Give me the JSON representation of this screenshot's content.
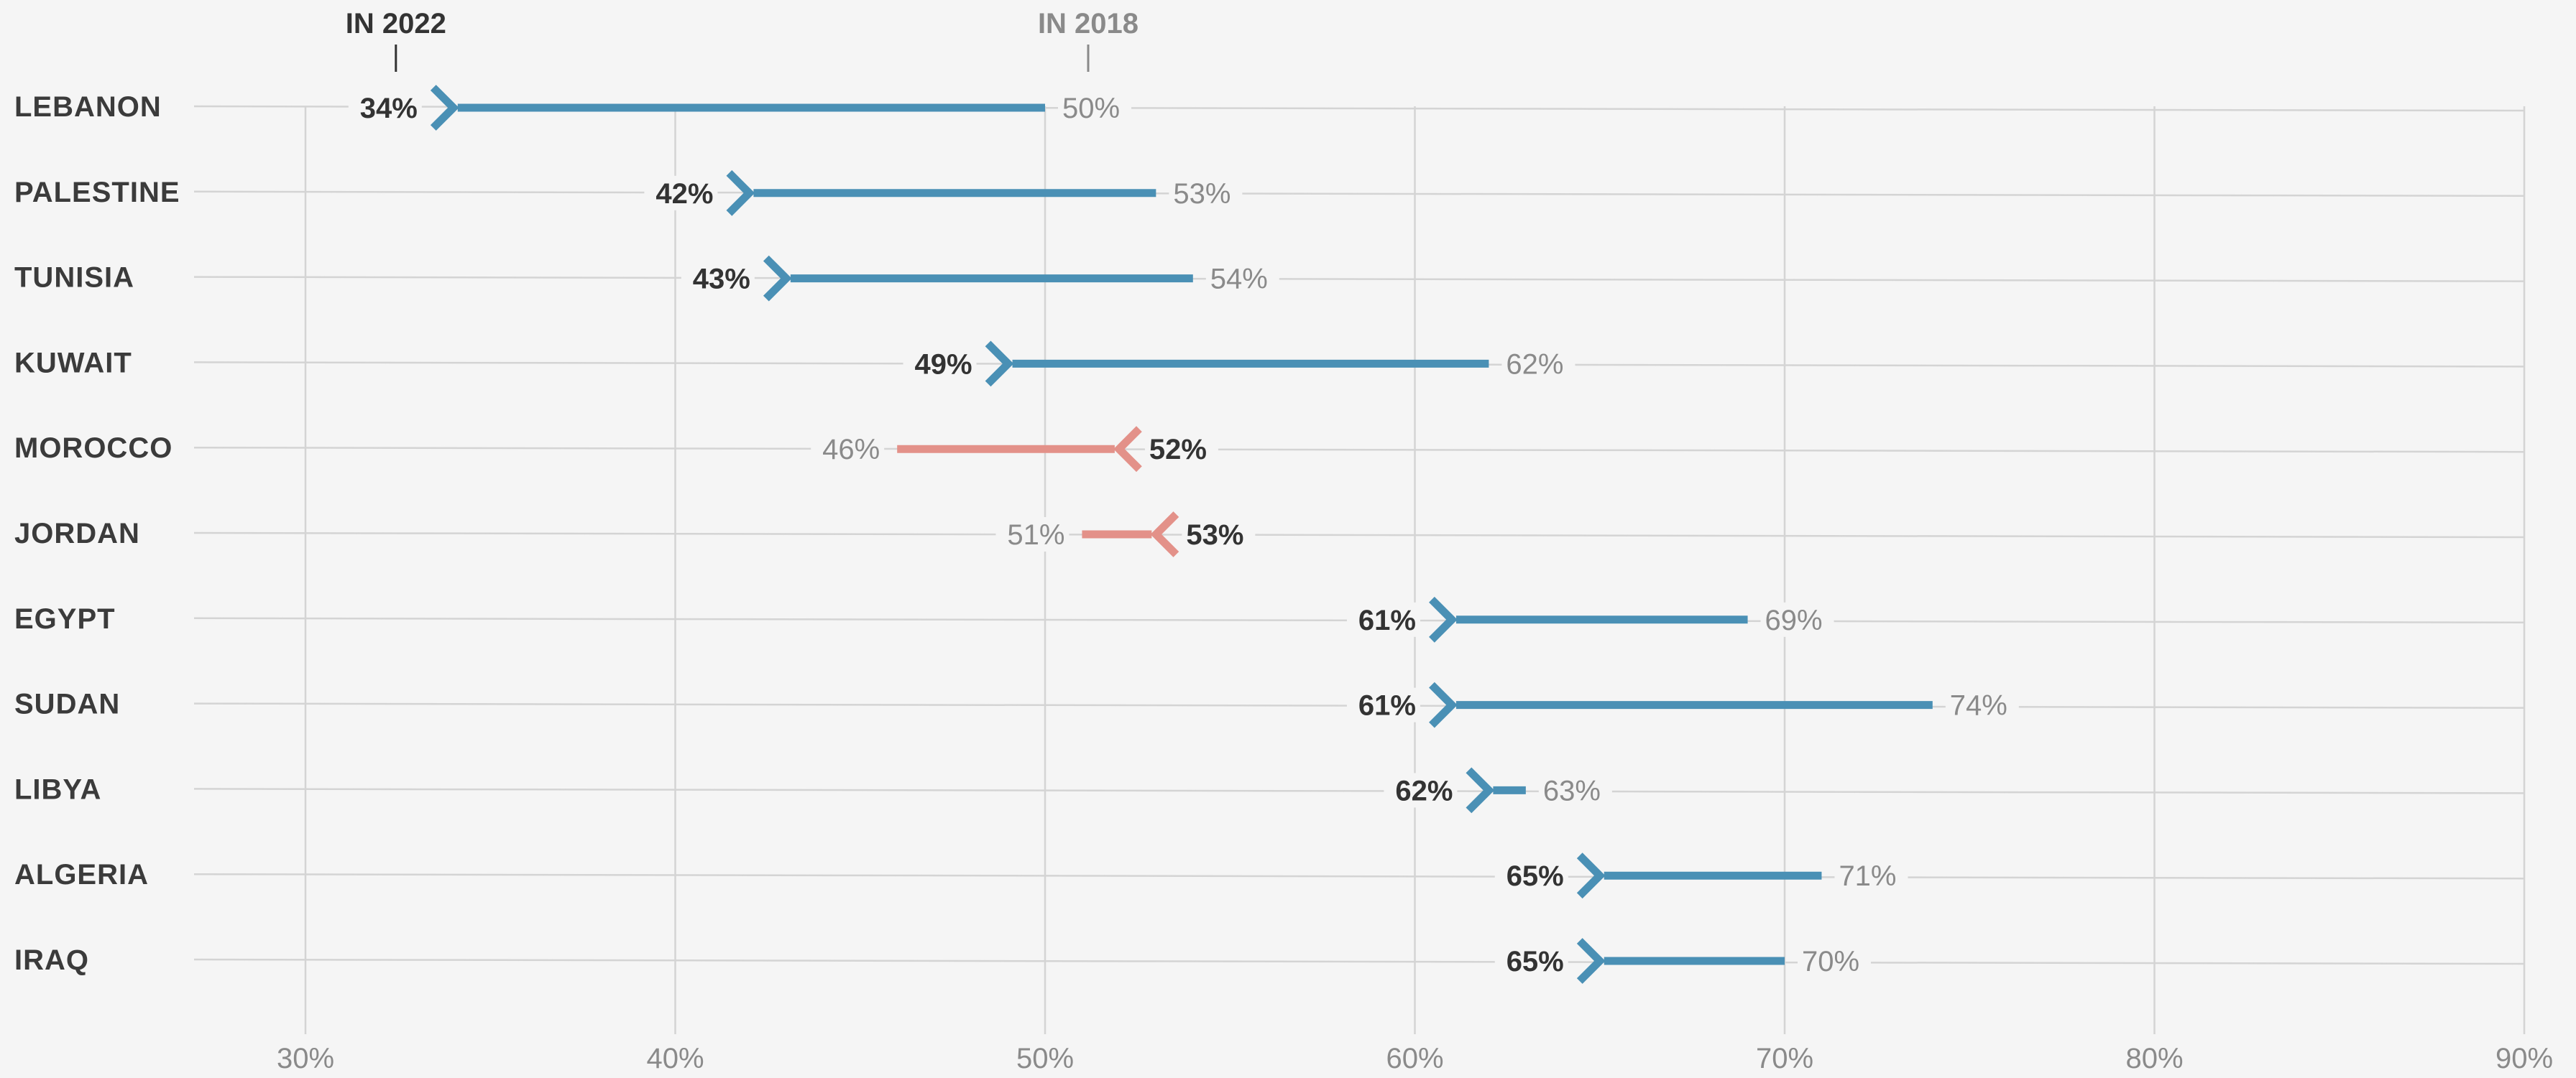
{
  "chart_data": {
    "type": "arrow-dot",
    "legend": {
      "new_label": "IN 2022",
      "old_label": "IN 2018"
    },
    "x_ticks": [
      "30%",
      "40%",
      "50%",
      "60%",
      "70%",
      "80%",
      "90%"
    ],
    "xlim": [
      30,
      90
    ],
    "colors": {
      "decrease": "#4a90b5",
      "increase": "#e39189",
      "grid": "#d4d4d4"
    },
    "rows": [
      {
        "country": "LEBANON",
        "v2018": 50,
        "v2022": 34,
        "label2018": "50%",
        "label2022": "34%"
      },
      {
        "country": "PALESTINE",
        "v2018": 53,
        "v2022": 42,
        "label2018": "53%",
        "label2022": "42%"
      },
      {
        "country": "TUNISIA",
        "v2018": 54,
        "v2022": 43,
        "label2018": "54%",
        "label2022": "43%"
      },
      {
        "country": "KUWAIT",
        "v2018": 62,
        "v2022": 49,
        "label2018": "62%",
        "label2022": "49%"
      },
      {
        "country": "MOROCCO",
        "v2018": 46,
        "v2022": 52,
        "label2018": "46%",
        "label2022": "52%"
      },
      {
        "country": "JORDAN",
        "v2018": 51,
        "v2022": 53,
        "label2018": "51%",
        "label2022": "53%"
      },
      {
        "country": "EGYPT",
        "v2018": 69,
        "v2022": 61,
        "label2018": "69%",
        "label2022": "61%"
      },
      {
        "country": "SUDAN",
        "v2018": 74,
        "v2022": 61,
        "label2018": "74%",
        "label2022": "61%"
      },
      {
        "country": "LIBYA",
        "v2018": 63,
        "v2022": 62,
        "label2018": "63%",
        "label2022": "62%"
      },
      {
        "country": "ALGERIA",
        "v2018": 71,
        "v2022": 65,
        "label2018": "71%",
        "label2022": "65%"
      },
      {
        "country": "IRAQ",
        "v2018": 70,
        "v2022": 65,
        "label2018": "70%",
        "label2022": "65%"
      }
    ]
  }
}
